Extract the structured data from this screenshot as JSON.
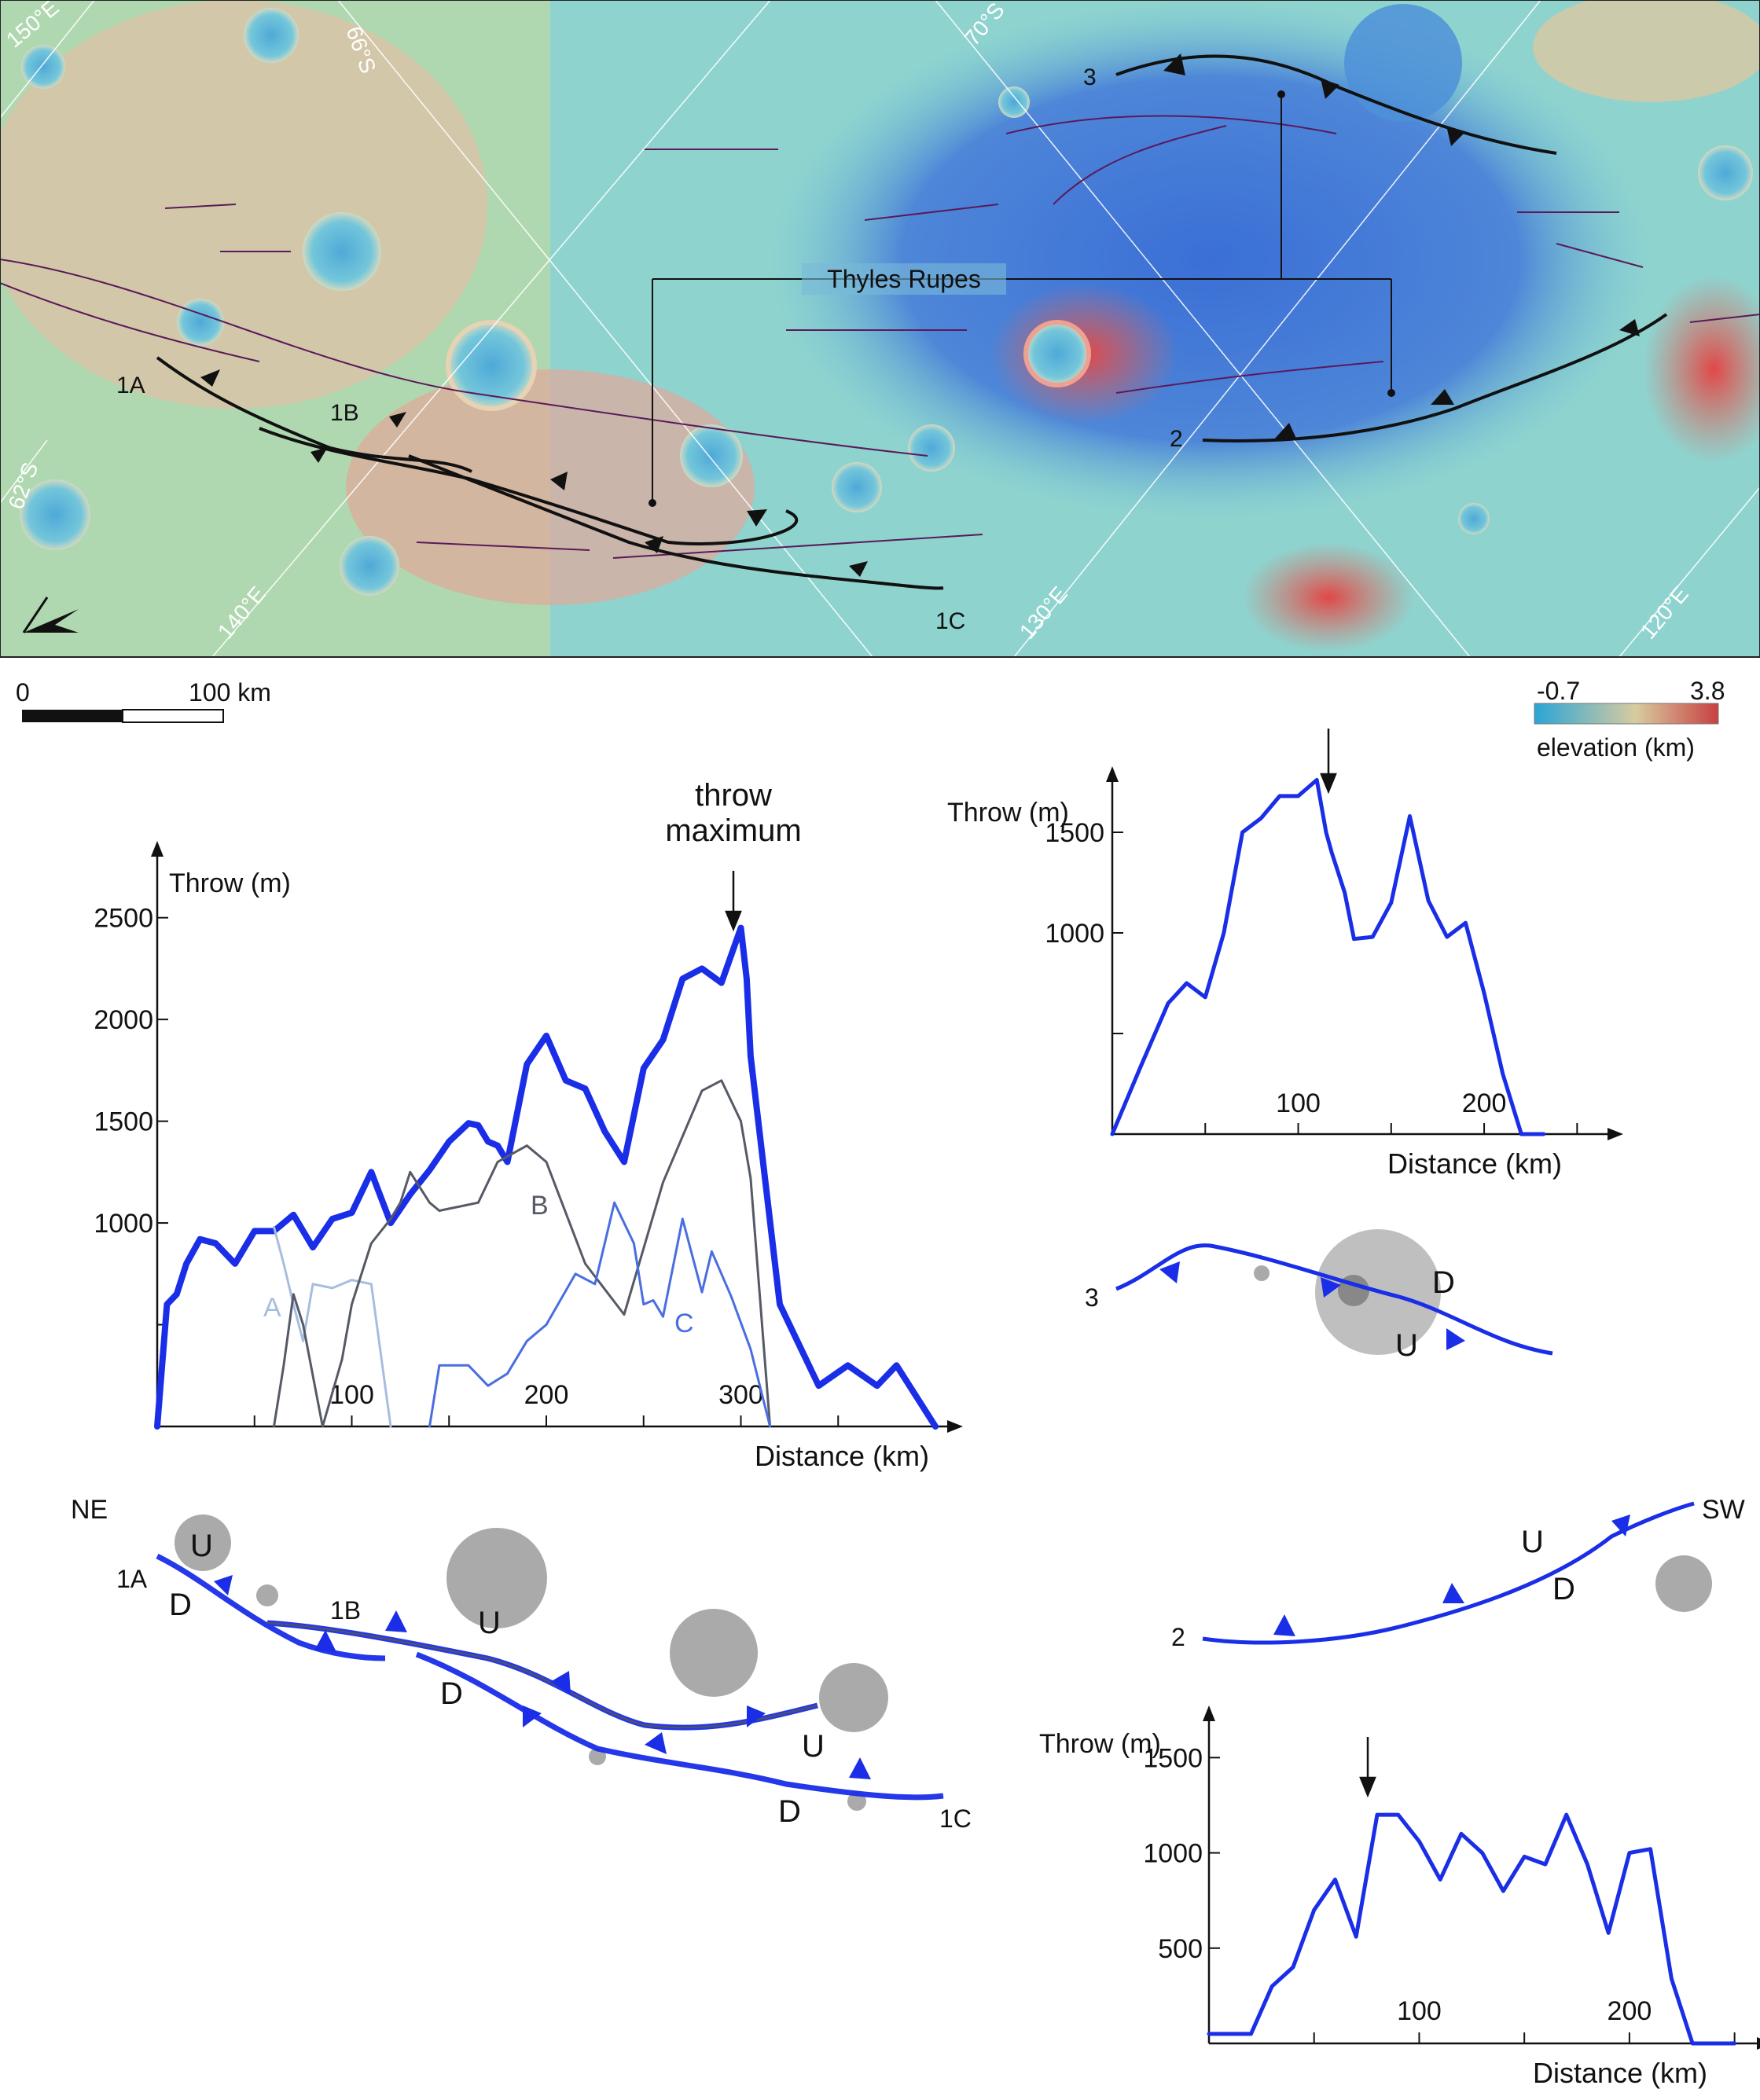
{
  "map": {
    "grid_labels": [
      "150°E",
      "66°S",
      "70°S",
      "62°S",
      "140°E",
      "130°E",
      "120°E"
    ],
    "fault_labels": [
      "1A",
      "1B",
      "1C",
      "2",
      "3"
    ],
    "feature_label": "Thyles Rupes",
    "scalebar": {
      "zero": "0",
      "end": "100 km"
    },
    "colorbar": {
      "min": "-0.7",
      "max": "3.8",
      "label": "elevation (km)",
      "colors": [
        "#2aa5d6",
        "#d8cba0",
        "#c84040"
      ]
    }
  },
  "chart_data": [
    {
      "type": "line",
      "id": "profile-1",
      "ylabel": "Throw (m)",
      "xlabel": "Distance (km)",
      "xlim": [
        0,
        400
      ],
      "ylim": [
        0,
        2800
      ],
      "xticks": [
        "100",
        "200",
        "300"
      ],
      "yticks": [
        "1000",
        "1500",
        "2000",
        "2500"
      ],
      "annotation": "throw maximum",
      "series": [
        {
          "name": "",
          "style": "thick",
          "color": "#1a2ee8",
          "x": [
            0,
            5,
            10,
            15,
            22,
            30,
            40,
            50,
            60,
            70,
            80,
            90,
            100,
            110,
            120,
            130,
            140,
            150,
            160,
            165,
            170,
            175,
            180,
            190,
            200,
            210,
            220,
            230,
            240,
            250,
            260,
            270,
            280,
            290,
            300,
            303,
            305,
            320,
            340,
            355,
            370,
            380,
            400
          ],
          "y": [
            0,
            600,
            650,
            800,
            920,
            900,
            800,
            960,
            960,
            1040,
            880,
            1020,
            1050,
            1250,
            1000,
            1140,
            1260,
            1400,
            1490,
            1480,
            1400,
            1380,
            1300,
            1780,
            1920,
            1700,
            1660,
            1450,
            1300,
            1760,
            1900,
            2200,
            2250,
            2180,
            2450,
            2200,
            1820,
            600,
            200,
            300,
            200,
            300,
            0
          ]
        },
        {
          "name": "A",
          "style": "thin",
          "color": "#a7bde0",
          "x": [
            60,
            65,
            70,
            75,
            80,
            90,
            100,
            110,
            120
          ],
          "y": [
            980,
            800,
            600,
            420,
            700,
            680,
            720,
            700,
            0
          ]
        },
        {
          "name": "B",
          "style": "thin",
          "color": "#555a66",
          "x": [
            60,
            65,
            70,
            75,
            85,
            95,
            100,
            110,
            120,
            125,
            130,
            140,
            145,
            150,
            155,
            165,
            175,
            190,
            200,
            220,
            240,
            260,
            280,
            290,
            300,
            305,
            315
          ],
          "y": [
            0,
            300,
            650,
            500,
            0,
            330,
            600,
            900,
            1020,
            1100,
            1250,
            1100,
            1060,
            1070,
            1080,
            1100,
            1300,
            1380,
            1300,
            800,
            550,
            1200,
            1650,
            1700,
            1500,
            1220,
            0
          ]
        },
        {
          "name": "C",
          "style": "thin",
          "color": "#4a6de0",
          "x": [
            140,
            145,
            160,
            170,
            180,
            190,
            200,
            215,
            225,
            230,
            235,
            245,
            250,
            255,
            260,
            270,
            280,
            285,
            295,
            305,
            315
          ],
          "y": [
            0,
            300,
            300,
            200,
            260,
            420,
            500,
            750,
            700,
            900,
            1100,
            900,
            600,
            620,
            540,
            1020,
            660,
            860,
            640,
            380,
            0
          ]
        }
      ]
    },
    {
      "type": "line",
      "id": "profile-3",
      "ylabel": "Throw (m)",
      "xlabel": "Distance (km)",
      "xlim": [
        0,
        260
      ],
      "ylim": [
        0,
        1750
      ],
      "xticks": [
        "100",
        "200"
      ],
      "yticks": [
        "1000",
        "1500"
      ],
      "series": [
        {
          "name": "",
          "color": "#1a2ee8",
          "x": [
            0,
            15,
            30,
            40,
            50,
            60,
            70,
            80,
            90,
            100,
            110,
            115,
            118,
            125,
            130,
            140,
            150,
            160,
            170,
            180,
            190,
            200,
            210,
            220,
            232
          ],
          "y": [
            0,
            330,
            650,
            750,
            680,
            1000,
            1500,
            1570,
            1680,
            1680,
            1760,
            1500,
            1400,
            1200,
            970,
            980,
            1150,
            1580,
            1160,
            980,
            1050,
            700,
            300,
            0,
            0
          ]
        }
      ]
    },
    {
      "type": "line",
      "id": "profile-2",
      "ylabel": "Throw (m)",
      "xlabel": "Distance (km)",
      "xlim": [
        0,
        255
      ],
      "ylim": [
        0,
        1650
      ],
      "xticks": [
        "100",
        "200"
      ],
      "yticks": [
        "500",
        "1000",
        "1500"
      ],
      "series": [
        {
          "name": "",
          "color": "#1a2ee8",
          "x": [
            0,
            10,
            20,
            30,
            40,
            50,
            60,
            70,
            80,
            90,
            100,
            110,
            120,
            130,
            140,
            150,
            160,
            170,
            180,
            190,
            200,
            210,
            220,
            230,
            240,
            250
          ],
          "y": [
            50,
            50,
            50,
            300,
            400,
            700,
            860,
            560,
            1200,
            1200,
            1060,
            860,
            1100,
            1000,
            800,
            980,
            940,
            1200,
            940,
            580,
            1000,
            1020,
            340,
            0,
            0,
            0
          ]
        }
      ]
    }
  ],
  "schematics": {
    "top_right": {
      "trace": "3",
      "labels": [
        "D",
        "U"
      ]
    },
    "middle_right": {
      "trace": "2",
      "direction": "SW",
      "labels": [
        "U",
        "D"
      ]
    },
    "bottom_left": {
      "direction": "NE",
      "traces": [
        "1A",
        "1B",
        "1C"
      ],
      "labels": [
        "U",
        "D",
        "U",
        "D",
        "U",
        "D"
      ]
    }
  }
}
